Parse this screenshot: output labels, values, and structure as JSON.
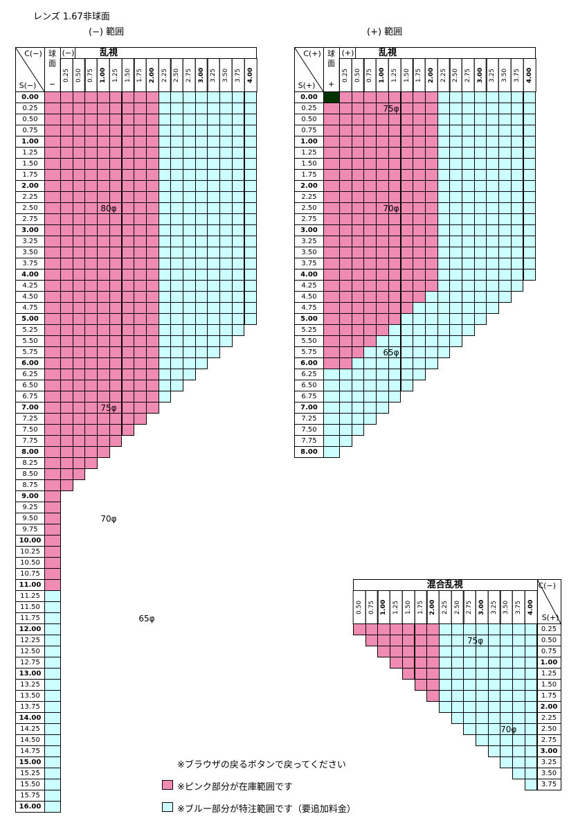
{
  "page": {
    "title": "レンズ 1.67非球面",
    "minus_range_title": "(−)  範囲",
    "plus_range_title": "(+)  範囲"
  },
  "colors": {
    "pink": "#f08cb4",
    "blue": "#ccffff",
    "dark": "#003300",
    "line": "#000000"
  },
  "labels": {
    "sphere_header": [
      "球",
      "面"
    ],
    "minus_sign": "−",
    "plus_sign": "+",
    "c_minus": "C(−)",
    "s_minus": "S(−)",
    "c_plus": "C(+)",
    "s_plus": "S(+)",
    "minus_astig": [
      "(−)",
      "乱視"
    ],
    "plus_astig": [
      "(+)",
      "乱視"
    ],
    "mixed_astig": "混合乱視"
  },
  "cyl_values": [
    "0.25",
    "0.50",
    "0.75",
    "1.00",
    "1.25",
    "1.50",
    "1.75",
    "2.00",
    "2.25",
    "2.50",
    "2.75",
    "3.00",
    "3.25",
    "3.50",
    "3.75",
    "4.00"
  ],
  "mixed_cyl_values": [
    "0.50",
    "0.75",
    "1.00",
    "1.25",
    "1.50",
    "1.75",
    "2.00",
    "2.25",
    "2.50",
    "2.75",
    "3.00",
    "3.25",
    "3.50",
    "3.75",
    "4.00"
  ],
  "minus_sph_values": [
    "0.00",
    "0.25",
    "0.50",
    "0.75",
    "1.00",
    "1.25",
    "1.50",
    "1.75",
    "2.00",
    "2.25",
    "2.50",
    "2.75",
    "3.00",
    "3.25",
    "3.50",
    "3.75",
    "4.00",
    "4.25",
    "4.50",
    "4.75",
    "5.00",
    "5.25",
    "5.50",
    "5.75",
    "6.00",
    "6.25",
    "6.50",
    "6.75",
    "7.00",
    "7.25",
    "7.50",
    "7.75",
    "8.00",
    "8.25",
    "8.50",
    "8.75",
    "9.00",
    "9.25",
    "9.50",
    "9.75",
    "10.00",
    "10.25",
    "10.50",
    "10.75",
    "11.00",
    "11.25",
    "11.50",
    "11.75",
    "12.00",
    "12.25",
    "12.50",
    "12.75",
    "13.00",
    "13.25",
    "13.50",
    "13.75",
    "14.00",
    "14.25",
    "14.50",
    "14.75",
    "15.00",
    "15.25",
    "15.50",
    "15.75",
    "16.00"
  ],
  "plus_sph_values": [
    "0.00",
    "0.25",
    "0.50",
    "0.75",
    "1.00",
    "1.25",
    "1.50",
    "1.75",
    "2.00",
    "2.25",
    "2.50",
    "2.75",
    "3.00",
    "3.25",
    "3.50",
    "3.75",
    "4.00",
    "4.25",
    "4.50",
    "4.75",
    "5.00",
    "5.25",
    "5.50",
    "5.75",
    "6.00",
    "6.25",
    "6.50",
    "6.75",
    "7.00",
    "7.25",
    "7.50",
    "7.75",
    "8.00"
  ],
  "mixed_sph_values": [
    "0.25",
    "0.50",
    "0.75",
    "1.00",
    "1.25",
    "1.50",
    "1.75",
    "2.00",
    "2.25",
    "2.50",
    "2.75",
    "3.00",
    "3.25",
    "3.50",
    "3.75"
  ],
  "minus_zone_labels": [
    "80φ",
    "75φ",
    "70φ",
    "65φ"
  ],
  "plus_zone_labels": [
    "75φ",
    "70φ",
    "65φ"
  ],
  "mixed_zone_labels": [
    "75φ",
    "70φ"
  ],
  "notes": {
    "back": "※ブラウザの戻るボタンで戻ってください",
    "pink": "※ピンク部分が在庫範囲です",
    "blue": "※ブルー部分が特注範囲です（要追加料金）"
  }
}
